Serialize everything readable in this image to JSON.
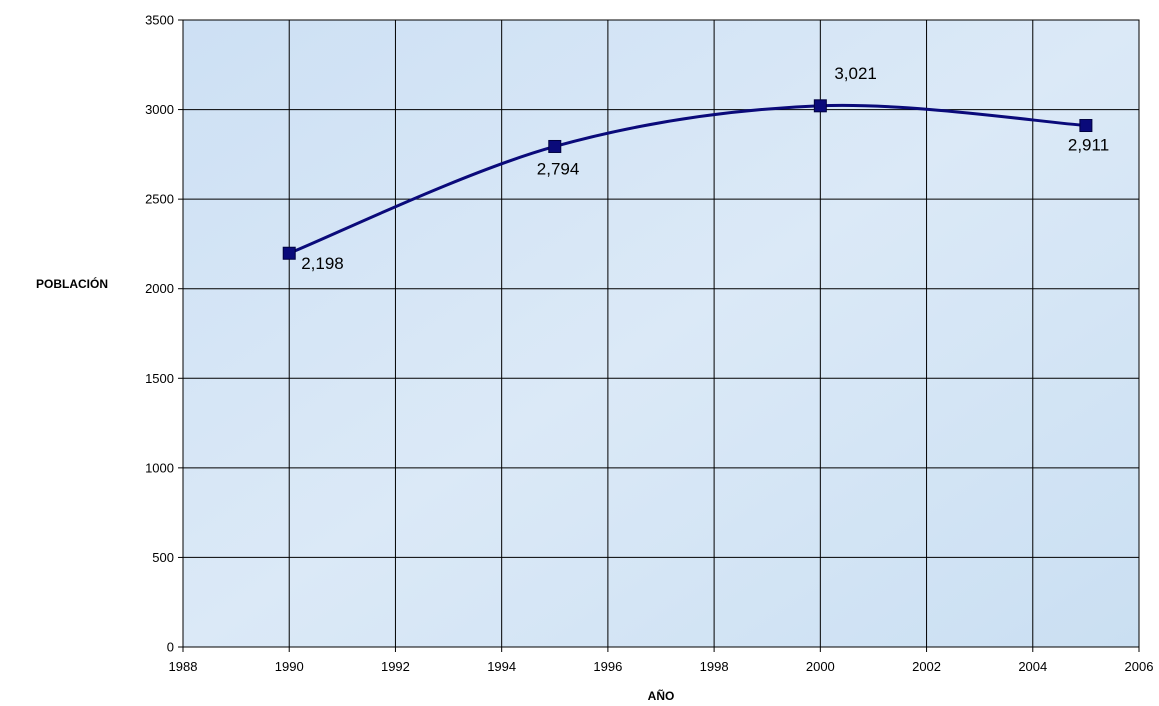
{
  "chart_data": {
    "type": "line",
    "xlabel": "AÑO",
    "ylabel": "POBLACIÓN",
    "xlim": [
      1988,
      2006
    ],
    "ylim": [
      0,
      3500
    ],
    "x_ticks": [
      "1988",
      "1990",
      "1992",
      "1994",
      "1996",
      "1998",
      "2000",
      "2002",
      "2004",
      "2006"
    ],
    "y_ticks": [
      "0",
      "500",
      "1000",
      "1500",
      "2000",
      "2500",
      "3000",
      "3500"
    ],
    "grid": true,
    "legend": "none",
    "series": [
      {
        "x": [
          1990,
          1995,
          2000,
          2005
        ],
        "y": [
          2198,
          2794,
          3021,
          2911
        ],
        "labels": [
          "2,198",
          "2,794",
          "3,021",
          "2,911"
        ],
        "line_style": "smoothed",
        "marker": "square"
      }
    ],
    "colors": {
      "line": "#0a0a7a",
      "marker": "#0a0a7a",
      "plot_background": "#cfe1f3",
      "grid": "#000000"
    }
  }
}
